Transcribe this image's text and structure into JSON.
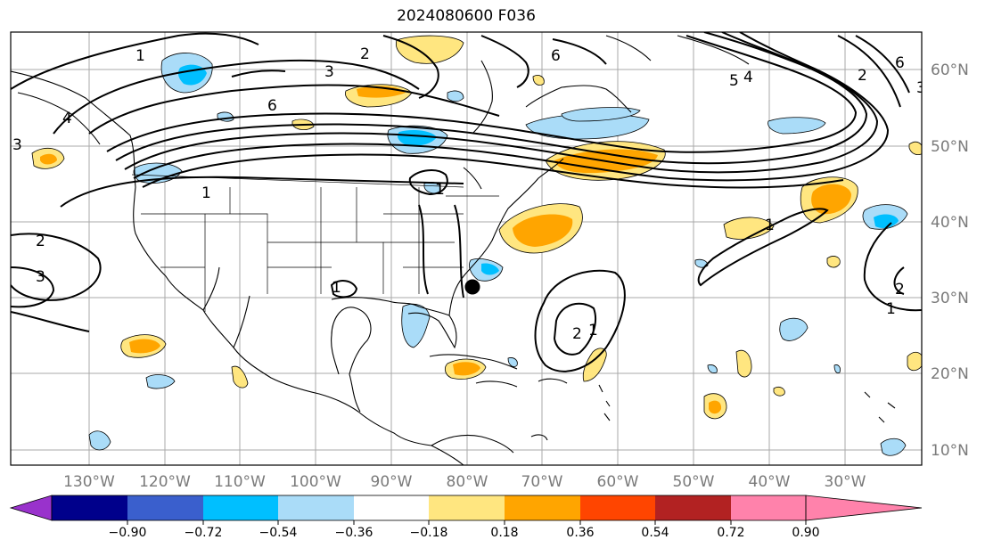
{
  "title": "2024080600 F036",
  "lon_labels": [
    "130°W",
    "120°W",
    "110°W",
    "100°W",
    "90°W",
    "80°W",
    "70°W",
    "60°W",
    "50°W",
    "40°W",
    "30°W"
  ],
  "lat_labels": [
    "60°N",
    "50°N",
    "40°N",
    "30°N",
    "20°N",
    "10°N"
  ],
  "colorbar": {
    "ticks": [
      "−0.90",
      "−0.72",
      "−0.54",
      "−0.36",
      "−0.18",
      "0.18",
      "0.36",
      "0.54",
      "0.72",
      "0.90"
    ],
    "colors": [
      "#9932cc",
      "#00008b",
      "#3a5fcd",
      "#00bfff",
      "#aadcf8",
      "#ffffff",
      "#ffe680",
      "#ffa500",
      "#ff4500",
      "#b22222",
      "#ff82ab"
    ]
  },
  "contour_labels": [
    "1",
    "3",
    "6",
    "1",
    "3",
    "4",
    "1",
    "2",
    "3",
    "1",
    "2",
    "1",
    "2",
    "1",
    "4",
    "5",
    "6",
    "2",
    "6",
    "3",
    "2",
    "1"
  ],
  "marker": "storm-center"
}
